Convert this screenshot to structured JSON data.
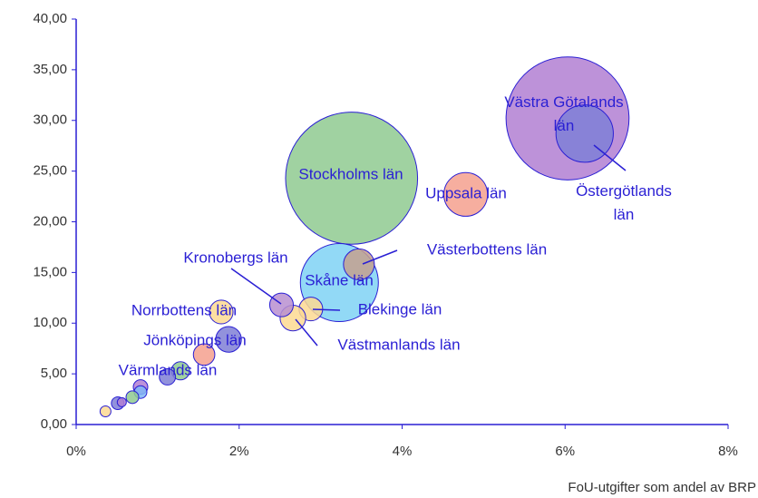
{
  "chart_data": {
    "type": "bubble",
    "x_label": "FoU-utgifter som andel av BRP",
    "labels": [
      "Västra Götalands län",
      "Östergötlands län",
      "Stockholms län",
      "Uppsala län",
      "Skåne län",
      "Västerbottens län",
      "Blekinge län",
      "Västmanlands län",
      "Kronobergs län",
      "Norrbottens län",
      "Jönköpings län",
      null,
      "Värmlands län",
      null,
      null,
      null,
      null,
      null,
      null,
      null
    ],
    "x": [
      6.03,
      6.24,
      3.38,
      4.78,
      3.23,
      3.47,
      2.88,
      2.66,
      2.52,
      1.78,
      1.87,
      1.57,
      1.28,
      1.12,
      0.79,
      0.79,
      0.69,
      0.51,
      0.56,
      0.36
    ],
    "values": [
      30.2,
      28.7,
      24.3,
      22.7,
      14.0,
      15.8,
      11.4,
      10.5,
      11.8,
      11.1,
      8.4,
      6.9,
      5.3,
      4.7,
      3.7,
      3.2,
      2.7,
      2.1,
      2.2,
      1.3
    ],
    "sizes": [
      46,
      10,
      53,
      5.8,
      18.5,
      2.9,
      1.7,
      2.0,
      1.7,
      1.7,
      2.0,
      1.4,
      1.0,
      0.8,
      0.64,
      0.49,
      0.49,
      0.49,
      0.25,
      0.36
    ],
    "colors": [
      "#b27fd2",
      "#7f7fd6",
      "#8fca90",
      "#f4a08e",
      "#7fd2f4",
      "#c4a08e",
      "#fdd992",
      "#fdd992",
      "#b88fd0",
      "#fdd992",
      "#7f7fd6",
      "#f4a08e",
      "#8fca90",
      "#7f7fd6",
      "#b27fd2",
      "#7fb6f4",
      "#8fca90",
      "#7f7fd6",
      "#b27fd2",
      "#fdd992"
    ],
    "xlim": [
      0,
      8
    ],
    "ylim": [
      0,
      40
    ],
    "xticks": [
      {
        "value": 0,
        "label": "0%"
      },
      {
        "value": 2,
        "label": "2%"
      },
      {
        "value": 4,
        "label": "4%"
      },
      {
        "value": 6,
        "label": "6%"
      },
      {
        "value": 8,
        "label": "8%"
      }
    ],
    "yticks": [
      {
        "value": 0,
        "label": "0,00"
      },
      {
        "value": 5,
        "label": "5,00"
      },
      {
        "value": 10,
        "label": "10,00"
      },
      {
        "value": 15,
        "label": "15,00"
      },
      {
        "value": 20,
        "label": "20,00"
      },
      {
        "value": 25,
        "label": "25,00"
      },
      {
        "value": 30,
        "label": "30,00"
      },
      {
        "value": 35,
        "label": "35,00"
      },
      {
        "value": 40,
        "label": "40,00"
      }
    ]
  }
}
